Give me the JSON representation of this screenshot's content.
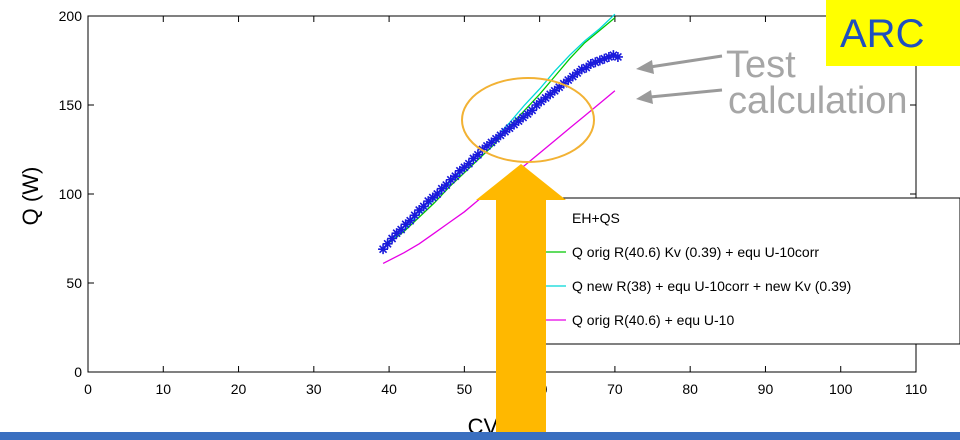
{
  "chart_data": {
    "type": "scatter",
    "title": "",
    "xlabel": "CV(%)",
    "ylabel": "Q (W)",
    "xlim": [
      0,
      110
    ],
    "ylim": [
      0,
      200
    ],
    "x_ticks": [
      0,
      10,
      20,
      30,
      40,
      50,
      60,
      70,
      80,
      90,
      100,
      110
    ],
    "y_ticks": [
      0,
      50,
      100,
      150,
      200
    ],
    "grid": false,
    "legend_position": "lower-right",
    "series": [
      {
        "name": "EH+QS",
        "kind": "markers",
        "marker": "asterisk",
        "color": "#1a1adb",
        "points": [
          [
            39.2,
            69
          ],
          [
            39.8,
            72
          ],
          [
            40.4,
            75
          ],
          [
            41.0,
            78
          ],
          [
            41.6,
            80
          ],
          [
            42.2,
            83
          ],
          [
            42.8,
            85
          ],
          [
            43.4,
            88
          ],
          [
            44.0,
            91
          ],
          [
            44.6,
            93
          ],
          [
            45.2,
            96
          ],
          [
            45.8,
            98
          ],
          [
            46.4,
            100
          ],
          [
            47.0,
            103
          ],
          [
            47.6,
            105
          ],
          [
            48.2,
            108
          ],
          [
            48.8,
            110
          ],
          [
            49.4,
            113
          ],
          [
            50.0,
            115
          ],
          [
            50.6,
            117
          ],
          [
            51.2,
            120
          ],
          [
            51.8,
            122
          ],
          [
            52.4,
            125
          ],
          [
            53.0,
            127
          ],
          [
            53.6,
            129
          ],
          [
            54.2,
            131
          ],
          [
            54.8,
            133
          ],
          [
            55.4,
            135
          ],
          [
            56.0,
            137
          ],
          [
            56.6,
            139
          ],
          [
            57.2,
            141
          ],
          [
            57.8,
            143
          ],
          [
            58.4,
            145
          ],
          [
            59.0,
            147
          ],
          [
            59.6,
            150
          ],
          [
            60.2,
            152
          ],
          [
            60.8,
            154
          ],
          [
            61.4,
            156
          ],
          [
            62.0,
            158
          ],
          [
            62.6,
            160
          ],
          [
            63.2,
            162
          ],
          [
            63.8,
            164
          ],
          [
            64.4,
            166
          ],
          [
            65.0,
            168
          ],
          [
            65.6,
            170
          ],
          [
            66.2,
            171
          ],
          [
            66.8,
            173
          ],
          [
            67.4,
            174
          ],
          [
            68.0,
            175
          ],
          [
            68.6,
            176
          ],
          [
            69.2,
            177
          ],
          [
            69.8,
            178
          ],
          [
            70.4,
            177
          ]
        ]
      },
      {
        "name": "Q orig R(40.6) Kv (0.39) + equ U-10corr",
        "kind": "line",
        "color": "#00c800",
        "points": [
          [
            39.5,
            71
          ],
          [
            42,
            79
          ],
          [
            44,
            87
          ],
          [
            46,
            95
          ],
          [
            48,
            104
          ],
          [
            50,
            112
          ],
          [
            52,
            120
          ],
          [
            54,
            128
          ],
          [
            56,
            138
          ],
          [
            58,
            147
          ],
          [
            60,
            156
          ],
          [
            62,
            166
          ],
          [
            64,
            176
          ],
          [
            66,
            185
          ],
          [
            68,
            192
          ],
          [
            70,
            199
          ]
        ]
      },
      {
        "name": "Q new R(38) + equ U-10corr + new Kv (0.39)",
        "kind": "line",
        "color": "#00d8d8",
        "points": [
          [
            39.5,
            72
          ],
          [
            42,
            80
          ],
          [
            44,
            89
          ],
          [
            46,
            97
          ],
          [
            48,
            106
          ],
          [
            50,
            114
          ],
          [
            52,
            123
          ],
          [
            54,
            131
          ],
          [
            56,
            140
          ],
          [
            58,
            150
          ],
          [
            60,
            159
          ],
          [
            62,
            169
          ],
          [
            64,
            178
          ],
          [
            66,
            186
          ],
          [
            68,
            193
          ],
          [
            70,
            201
          ]
        ]
      },
      {
        "name": "Q orig R(40.6) + equ U-10",
        "kind": "line",
        "color": "#e600e6",
        "points": [
          [
            39.2,
            61
          ],
          [
            42,
            67
          ],
          [
            44,
            72
          ],
          [
            46,
            78
          ],
          [
            48,
            84
          ],
          [
            50,
            90
          ],
          [
            52,
            97
          ],
          [
            54,
            103
          ],
          [
            56,
            110
          ],
          [
            58,
            116
          ],
          [
            60,
            123
          ],
          [
            62,
            130
          ],
          [
            64,
            137
          ],
          [
            66,
            144
          ],
          [
            68,
            151
          ],
          [
            70,
            158
          ]
        ]
      }
    ],
    "annotations": [
      "Test",
      "calculation",
      "ARC"
    ]
  }
}
